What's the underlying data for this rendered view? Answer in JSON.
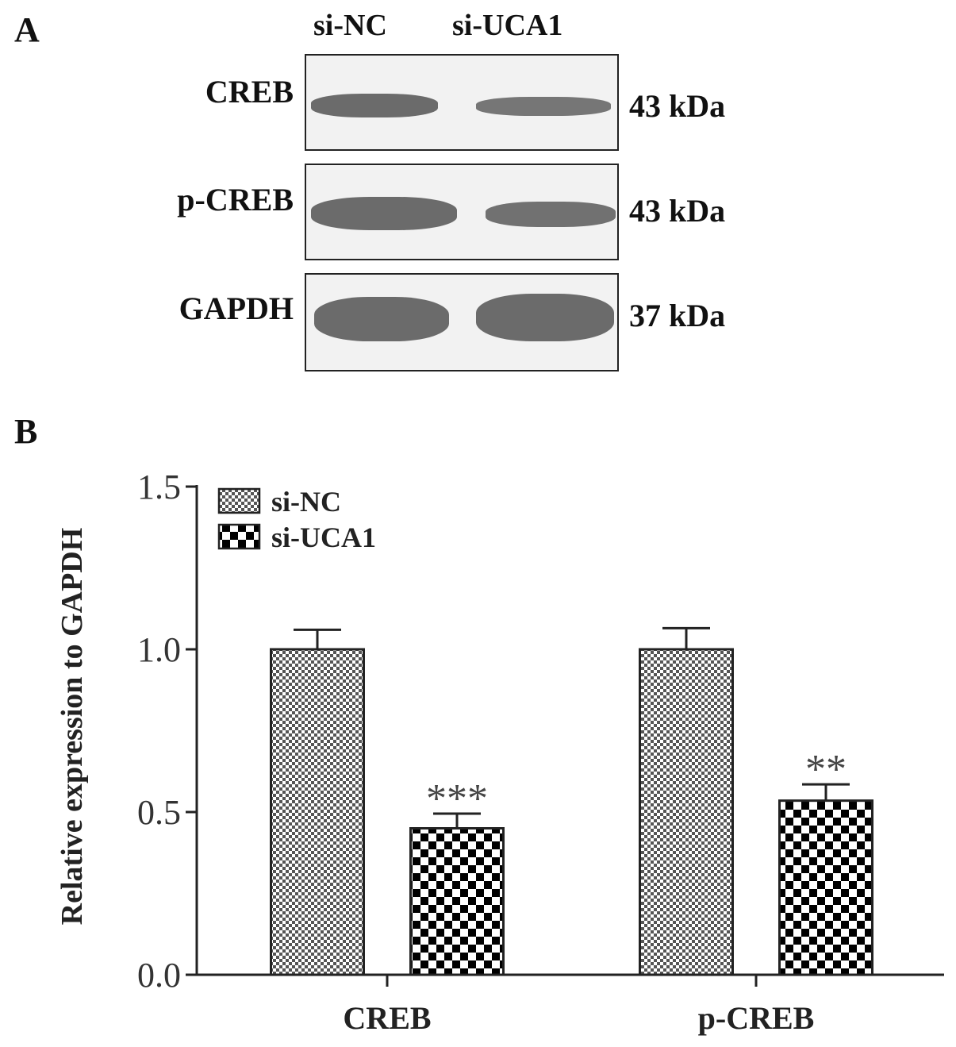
{
  "panel_a": {
    "label": "A",
    "lanes": [
      "si-NC",
      "si-UCA1"
    ],
    "blots": [
      {
        "protein": "CREB",
        "kda": "43 kDa",
        "band_intensity": [
          1.0,
          0.75
        ]
      },
      {
        "protein": "p-CREB",
        "kda": "43 kDa",
        "band_intensity": [
          1.0,
          0.8
        ]
      },
      {
        "protein": "GAPDH",
        "kda": "37 kDa",
        "band_intensity": [
          1.0,
          1.0
        ]
      }
    ]
  },
  "panel_b": {
    "label": "B"
  },
  "colors": {
    "band": "#6b6b6b",
    "bar_fill_1": "#8a8a8a",
    "bar_fill_2": "#000000",
    "axis": "#222222"
  },
  "chart_data": {
    "type": "bar",
    "categories": [
      "CREB",
      "p-CREB"
    ],
    "series": [
      {
        "name": "si-NC",
        "values": [
          1.0,
          1.0
        ],
        "errors": [
          0.06,
          0.065
        ],
        "pattern": "fine-checker"
      },
      {
        "name": "si-UCA1",
        "values": [
          0.45,
          0.535
        ],
        "errors": [
          0.045,
          0.05
        ],
        "pattern": "coarse-checker"
      }
    ],
    "annotations": [
      "***",
      "**"
    ],
    "ylabel": "Relative expression to GAPDH",
    "xlabel": "",
    "ylim": [
      0,
      1.5
    ],
    "yticks": [
      "0.0",
      "0.5",
      "1.0",
      "1.5"
    ],
    "legend": "top-left",
    "grid": false
  }
}
